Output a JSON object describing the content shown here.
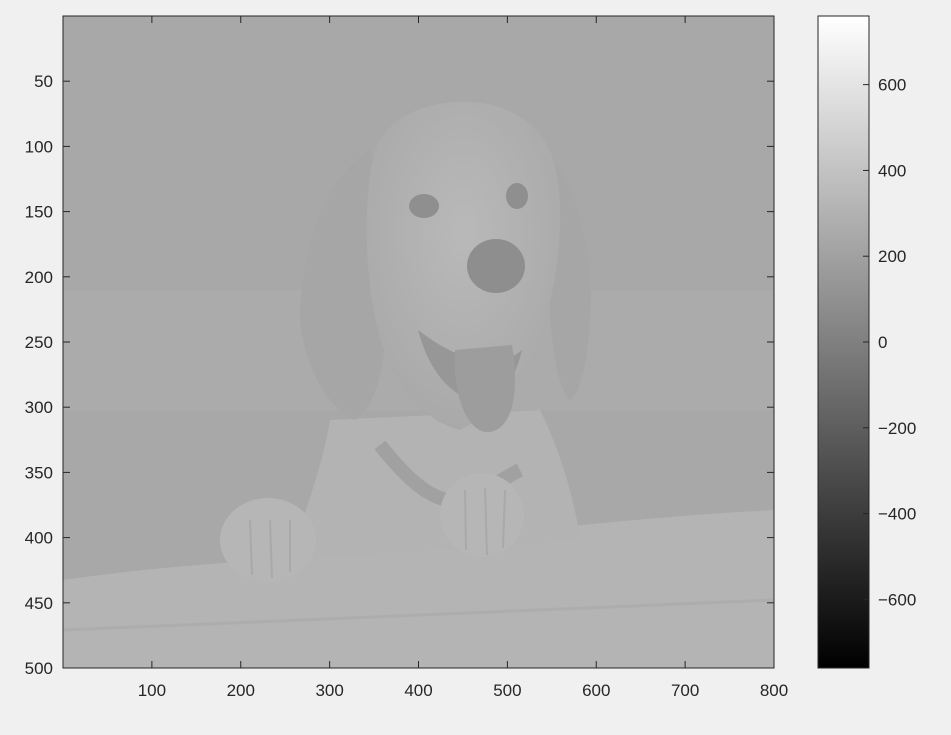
{
  "image": {
    "subject": "golden retriever puppy with tongue out, paws resting on a white blanket",
    "colormap": "gray",
    "background_level": 0.69
  },
  "axes": {
    "xlim": [
      0,
      800
    ],
    "ylim": [
      0,
      500
    ],
    "y_reversed": true,
    "x_ticks": [
      "100",
      "200",
      "300",
      "400",
      "500",
      "600",
      "700",
      "800"
    ],
    "y_ticks": [
      "50",
      "100",
      "150",
      "200",
      "250",
      "300",
      "350",
      "400",
      "450",
      "500"
    ]
  },
  "colorbar": {
    "range": [
      -760,
      760
    ],
    "ticks": [
      "600",
      "400",
      "200",
      "0",
      "−200",
      "−400",
      "−600"
    ]
  },
  "colors": {
    "figure_background": "#f0f0f0",
    "axis_line": "#262626",
    "colorbar_top": "#ffffff",
    "colorbar_bottom": "#000000"
  }
}
